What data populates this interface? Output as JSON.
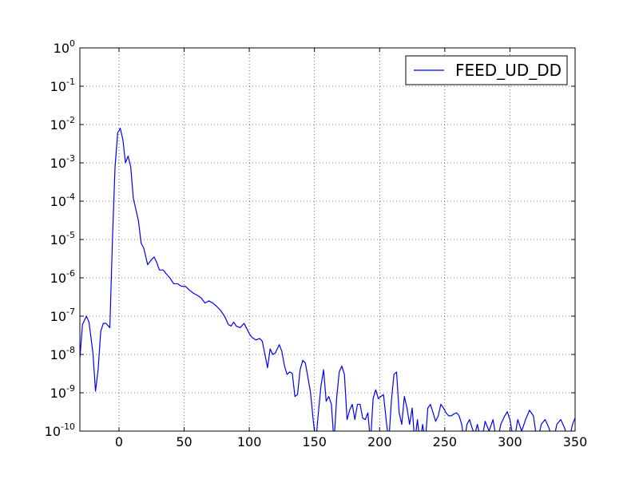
{
  "chart_data": {
    "type": "line",
    "title": "",
    "xlabel": "",
    "ylabel": "",
    "xlim": [
      -30,
      350
    ],
    "ylim": [
      1e-10,
      1
    ],
    "yscale": "log",
    "grid": true,
    "grid_style": "dotted",
    "legend_position": "upper right",
    "x_ticks": [
      "0",
      "50",
      "100",
      "150",
      "200",
      "250",
      "300",
      "350"
    ],
    "y_ticks": [
      {
        "base": "10",
        "exp": "-10"
      },
      {
        "base": "10",
        "exp": "-9"
      },
      {
        "base": "10",
        "exp": "-8"
      },
      {
        "base": "10",
        "exp": "-7"
      },
      {
        "base": "10",
        "exp": "-6"
      },
      {
        "base": "10",
        "exp": "-5"
      },
      {
        "base": "10",
        "exp": "-4"
      },
      {
        "base": "10",
        "exp": "-3"
      },
      {
        "base": "10",
        "exp": "-2"
      },
      {
        "base": "10",
        "exp": "-1"
      },
      {
        "base": "10",
        "exp": "0"
      }
    ],
    "series": [
      {
        "name": "FEED_UD_DD",
        "color": "#0000ff",
        "points": [
          [
            -30,
            8e-09
          ],
          [
            -28,
            6e-08
          ],
          [
            -25,
            1e-07
          ],
          [
            -23,
            7e-08
          ],
          [
            -20,
            1.1e-08
          ],
          [
            -18,
            1.1e-09
          ],
          [
            -16,
            4e-09
          ],
          [
            -14,
            4e-08
          ],
          [
            -12,
            6.5e-08
          ],
          [
            -10,
            6.5e-08
          ],
          [
            -7,
            5e-08
          ],
          [
            -5,
            1e-05
          ],
          [
            -3,
            0.0008
          ],
          [
            -1,
            0.006
          ],
          [
            1,
            0.008
          ],
          [
            3,
            0.004
          ],
          [
            5,
            0.001
          ],
          [
            7,
            0.0015
          ],
          [
            9,
            0.0008
          ],
          [
            11,
            0.00012
          ],
          [
            13,
            6e-05
          ],
          [
            15,
            3e-05
          ],
          [
            17,
            8e-06
          ],
          [
            19,
            6e-06
          ],
          [
            22,
            2.2e-06
          ],
          [
            25,
            3e-06
          ],
          [
            27,
            3.5e-06
          ],
          [
            29,
            2.5e-06
          ],
          [
            31,
            1.6e-06
          ],
          [
            34,
            1.6e-06
          ],
          [
            36,
            1.3e-06
          ],
          [
            39,
            1e-06
          ],
          [
            42,
            7e-07
          ],
          [
            45,
            7e-07
          ],
          [
            48,
            6e-07
          ],
          [
            51,
            6e-07
          ],
          [
            54,
            4.8e-07
          ],
          [
            57,
            4e-07
          ],
          [
            60,
            3.5e-07
          ],
          [
            63,
            3e-07
          ],
          [
            66,
            2.2e-07
          ],
          [
            69,
            2.5e-07
          ],
          [
            72,
            2.2e-07
          ],
          [
            75,
            1.8e-07
          ],
          [
            78,
            1.4e-07
          ],
          [
            81,
            1e-07
          ],
          [
            84,
            6e-08
          ],
          [
            86,
            5.5e-08
          ],
          [
            88,
            7e-08
          ],
          [
            90,
            5.5e-08
          ],
          [
            93,
            5e-08
          ],
          [
            96,
            6.5e-08
          ],
          [
            98,
            4.8e-08
          ],
          [
            100,
            3.5e-08
          ],
          [
            102,
            2.8e-08
          ],
          [
            105,
            2.4e-08
          ],
          [
            108,
            2.6e-08
          ],
          [
            110,
            2.2e-08
          ],
          [
            112,
            1e-08
          ],
          [
            114,
            4.5e-09
          ],
          [
            116,
            1.4e-08
          ],
          [
            118,
            1e-08
          ],
          [
            120,
            1.1e-08
          ],
          [
            123,
            1.8e-08
          ],
          [
            125,
            1.2e-08
          ],
          [
            127,
            5e-09
          ],
          [
            129,
            3e-09
          ],
          [
            131,
            3.5e-09
          ],
          [
            133,
            3.2e-09
          ],
          [
            135,
            8e-10
          ],
          [
            137,
            9e-10
          ],
          [
            139,
            4e-09
          ],
          [
            141,
            7e-09
          ],
          [
            143,
            6e-09
          ],
          [
            145,
            2.5e-09
          ],
          [
            147,
            1e-09
          ],
          [
            149,
            2e-10
          ],
          [
            151,
            5e-11
          ],
          [
            153,
            3e-10
          ],
          [
            155,
            1.5e-09
          ],
          [
            157,
            4e-09
          ],
          [
            159,
            6e-10
          ],
          [
            161,
            8e-10
          ],
          [
            163,
            5e-10
          ],
          [
            165,
            5e-11
          ],
          [
            167,
            7e-10
          ],
          [
            169,
            3.5e-09
          ],
          [
            171,
            5e-09
          ],
          [
            173,
            3e-09
          ],
          [
            175,
            2e-10
          ],
          [
            177,
            3.5e-10
          ],
          [
            179,
            5e-10
          ],
          [
            181,
            2e-10
          ],
          [
            183,
            5e-10
          ],
          [
            185,
            5e-10
          ],
          [
            187,
            2.2e-10
          ],
          [
            189,
            2e-10
          ],
          [
            191,
            3e-10
          ],
          [
            193,
            5e-11
          ],
          [
            195,
            7e-10
          ],
          [
            197,
            1.2e-09
          ],
          [
            199,
            7e-10
          ],
          [
            201,
            8e-10
          ],
          [
            203,
            9e-10
          ],
          [
            205,
            2e-10
          ],
          [
            207,
            5e-11
          ],
          [
            209,
            6e-10
          ],
          [
            211,
            3e-09
          ],
          [
            213,
            3.5e-09
          ],
          [
            215,
            3e-10
          ],
          [
            217,
            1.5e-10
          ],
          [
            219,
            8e-10
          ],
          [
            221,
            4e-10
          ],
          [
            223,
            1.5e-10
          ],
          [
            225,
            4e-10
          ],
          [
            227,
            5e-11
          ],
          [
            229,
            2e-10
          ],
          [
            231,
            5e-11
          ],
          [
            233,
            1.5e-10
          ],
          [
            235,
            5e-11
          ],
          [
            237,
            4e-10
          ],
          [
            239,
            5e-10
          ],
          [
            241,
            3e-10
          ],
          [
            243,
            1.8e-10
          ],
          [
            245,
            2.5e-10
          ],
          [
            247,
            5e-10
          ],
          [
            249,
            4e-10
          ],
          [
            251,
            3e-10
          ],
          [
            253,
            2.5e-10
          ],
          [
            255,
            2.5e-10
          ],
          [
            257,
            2.8e-10
          ],
          [
            259,
            3e-10
          ],
          [
            261,
            2.5e-10
          ],
          [
            263,
            1.5e-10
          ],
          [
            265,
            5e-11
          ],
          [
            267,
            1.5e-10
          ],
          [
            269,
            2e-10
          ],
          [
            271,
            1.2e-10
          ],
          [
            273,
            8e-11
          ],
          [
            275,
            1.5e-10
          ],
          [
            278,
            5e-11
          ],
          [
            281,
            1.8e-10
          ],
          [
            284,
            1e-10
          ],
          [
            287,
            2e-10
          ],
          [
            290,
            5e-11
          ],
          [
            293,
            1.5e-10
          ],
          [
            296,
            2.5e-10
          ],
          [
            298,
            3.2e-10
          ],
          [
            300,
            2e-10
          ],
          [
            303,
            5e-11
          ],
          [
            306,
            2e-10
          ],
          [
            309,
            1e-10
          ],
          [
            312,
            2e-10
          ],
          [
            315,
            3.5e-10
          ],
          [
            318,
            2.5e-10
          ],
          [
            321,
            5e-11
          ],
          [
            324,
            1.5e-10
          ],
          [
            327,
            2e-10
          ],
          [
            330,
            1.2e-10
          ],
          [
            333,
            5e-11
          ],
          [
            336,
            1.5e-10
          ],
          [
            339,
            2e-10
          ],
          [
            342,
            1.2e-10
          ],
          [
            345,
            5e-11
          ],
          [
            348,
            1.5e-10
          ],
          [
            350,
            2.2e-10
          ]
        ]
      }
    ]
  }
}
